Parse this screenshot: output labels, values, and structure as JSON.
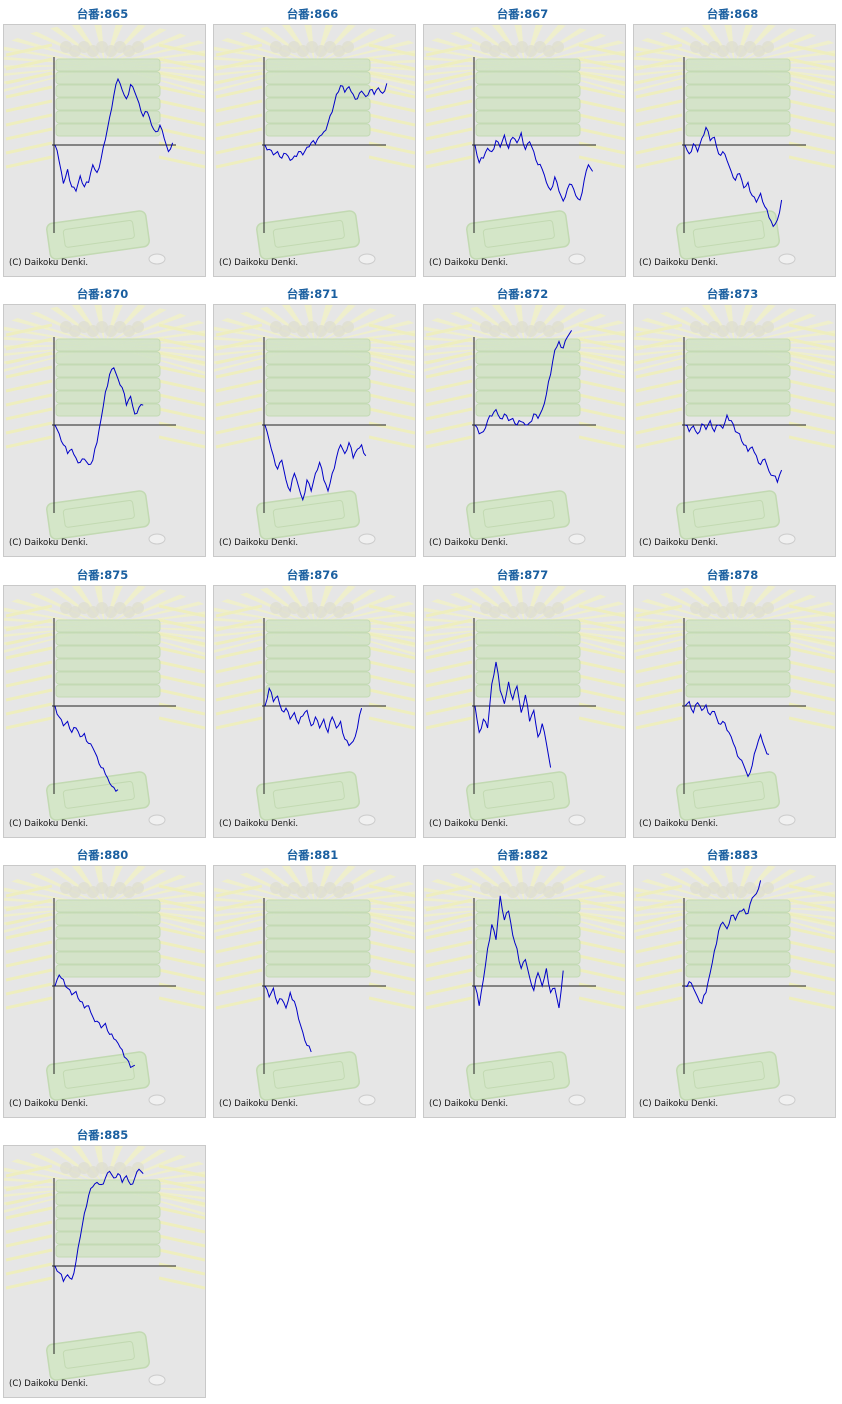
{
  "page": {
    "copyright": "(C) Daikoku Denki."
  },
  "colors": {
    "line": "#0000c8",
    "axis": "#222222",
    "title": "#1a5fa0",
    "panel_bg": "#e6e6e6"
  },
  "chart_data": [
    {
      "type": "line",
      "title": "台番:865",
      "values": [
        0,
        -1.5,
        -3.5,
        -2.2,
        -3.8,
        -4.2,
        -2.8,
        -3.8,
        -3.4,
        -1.8,
        -2.5,
        -1.2,
        0.5,
        2.5,
        4.5,
        6.0,
        5.0,
        4.2,
        5.5,
        4.8,
        3.8,
        2.6,
        3.0,
        1.8,
        1.2,
        1.8,
        0.6,
        -0.6,
        0.2
      ]
    },
    {
      "type": "line",
      "title": "台番:866",
      "values": [
        0,
        -0.4,
        -0.9,
        -0.6,
        -1.2,
        -0.8,
        -1.4,
        -1.0,
        -0.6,
        -0.9,
        -0.2,
        0.2,
        0.1,
        0.8,
        1.2,
        2.0,
        3.0,
        4.6,
        5.4,
        4.8,
        5.3,
        4.6,
        4.2,
        4.9,
        4.4,
        5.0,
        4.6,
        5.2,
        4.7,
        5.6
      ]
    },
    {
      "type": "line",
      "title": "台番:867",
      "values": [
        0,
        -1.6,
        -1.2,
        -0.3,
        -0.6,
        0.4,
        -0.2,
        0.9,
        -0.3,
        0.7,
        0.2,
        1.1,
        -0.4,
        0.3,
        -0.6,
        -1.8,
        -2.2,
        -3.4,
        -4.1,
        -2.9,
        -4.2,
        -5.1,
        -4.0,
        -3.6,
        -4.6,
        -5.0,
        -3.2,
        -1.8,
        -2.4
      ]
    },
    {
      "type": "line",
      "title": "台番:868",
      "values": [
        0,
        -0.8,
        0.1,
        -0.6,
        0.6,
        1.6,
        0.4,
        0.7,
        -0.8,
        -0.6,
        -1.4,
        -2.4,
        -3.2,
        -2.6,
        -3.9,
        -3.4,
        -4.6,
        -5.2,
        -4.4,
        -5.6,
        -6.6,
        -7.4,
        -6.8,
        -5.0
      ]
    },
    {
      "type": "line",
      "title": "台番:870",
      "values": [
        0,
        -0.8,
        -1.8,
        -2.6,
        -2.2,
        -3.0,
        -3.4,
        -3.1,
        -3.6,
        -3.2,
        -1.6,
        0.6,
        3.0,
        4.6,
        5.2,
        4.2,
        3.4,
        1.8,
        2.6,
        1.0,
        1.6,
        1.8
      ]
    },
    {
      "type": "line",
      "title": "台番:871",
      "values": [
        0,
        -1.4,
        -2.8,
        -4.0,
        -3.2,
        -5.0,
        -6.0,
        -4.4,
        -5.6,
        -6.8,
        -5.0,
        -6.0,
        -4.4,
        -3.4,
        -5.0,
        -6.0,
        -4.4,
        -3.0,
        -1.8,
        -2.6,
        -1.6,
        -3.0,
        -2.2,
        -1.8,
        -2.8
      ]
    },
    {
      "type": "line",
      "title": "台番:872",
      "values": [
        0,
        -0.8,
        -0.6,
        0.4,
        0.8,
        1.4,
        0.6,
        1.0,
        0.4,
        0.6,
        0.0,
        0.3,
        0.0,
        0.2,
        1.0,
        0.6,
        1.4,
        2.8,
        4.6,
        6.8,
        7.6,
        7.0,
        8.0,
        8.6
      ]
    },
    {
      "type": "line",
      "title": "台番:873",
      "values": [
        0,
        -0.6,
        -0.1,
        -0.8,
        0.1,
        -0.4,
        0.4,
        -0.6,
        0.0,
        -0.3,
        0.9,
        0.4,
        -0.6,
        -0.8,
        -1.8,
        -2.4,
        -2.0,
        -2.8,
        -3.6,
        -3.1,
        -4.2,
        -4.6,
        -5.2,
        -4.1
      ]
    },
    {
      "type": "line",
      "title": "台番:875",
      "values": [
        0,
        -1.0,
        -1.8,
        -1.4,
        -2.4,
        -2.0,
        -2.8,
        -2.5,
        -3.4,
        -3.8,
        -4.6,
        -5.6,
        -6.2,
        -7.0,
        -7.4,
        -7.6
      ]
    },
    {
      "type": "line",
      "title": "台番:876",
      "values": [
        0,
        1.6,
        0.4,
        0.9,
        -0.4,
        -0.2,
        -1.2,
        -0.6,
        -1.6,
        -0.9,
        -0.4,
        -1.8,
        -1.0,
        -2.0,
        -1.2,
        -2.4,
        -1.0,
        -2.0,
        -1.4,
        -3.0,
        -3.6,
        -3.2,
        -2.0,
        -0.2
      ]
    },
    {
      "type": "line",
      "title": "台番:877",
      "values": [
        0,
        -2.4,
        -1.2,
        -2.0,
        2.0,
        4.0,
        1.4,
        0.2,
        2.2,
        0.6,
        1.8,
        -0.6,
        1.0,
        -1.4,
        -0.4,
        -2.8,
        -1.6,
        -3.4,
        -5.6
      ]
    },
    {
      "type": "line",
      "title": "台番:878",
      "values": [
        0,
        0.4,
        -0.6,
        0.3,
        -0.4,
        0.1,
        -0.8,
        -0.5,
        -1.6,
        -1.4,
        -2.2,
        -2.8,
        -3.8,
        -4.8,
        -5.4,
        -6.4,
        -5.4,
        -3.8,
        -2.6,
        -3.8,
        -4.4
      ]
    },
    {
      "type": "line",
      "title": "台番:880",
      "values": [
        0,
        1.0,
        0.6,
        -0.2,
        -0.8,
        -0.5,
        -1.4,
        -2.0,
        -1.8,
        -2.8,
        -3.2,
        -3.8,
        -3.4,
        -4.4,
        -4.8,
        -5.2,
        -5.8,
        -6.6,
        -7.4,
        -7.2
      ]
    },
    {
      "type": "line",
      "title": "台番:881",
      "values": [
        0,
        -1.0,
        -0.2,
        -1.6,
        -1.2,
        -2.0,
        -0.6,
        -1.4,
        -3.0,
        -4.2,
        -5.4,
        -6.0
      ]
    },
    {
      "type": "line",
      "title": "台番:882",
      "values": [
        0,
        -1.8,
        0.6,
        3.4,
        5.6,
        4.2,
        8.2,
        6.0,
        6.8,
        4.6,
        3.4,
        1.6,
        2.4,
        0.8,
        -0.4,
        1.2,
        0.0,
        1.6,
        -0.6,
        -0.2,
        -2.0,
        1.4
      ]
    },
    {
      "type": "line",
      "title": "台番:883",
      "values": [
        0,
        0.4,
        -0.2,
        -1.0,
        -1.6,
        -0.6,
        1.2,
        3.2,
        5.0,
        5.8,
        5.2,
        6.4,
        6.0,
        6.8,
        7.0,
        6.6,
        8.0,
        8.4,
        9.6
      ]
    },
    {
      "type": "line",
      "title": "台番:885",
      "values": [
        0,
        -0.6,
        -1.4,
        -0.8,
        -1.2,
        0.4,
        2.6,
        4.8,
        6.4,
        7.2,
        7.6,
        7.4,
        8.0,
        8.6,
        8.0,
        8.4,
        7.6,
        8.2,
        7.4,
        8.0,
        8.8,
        8.4
      ]
    }
  ]
}
